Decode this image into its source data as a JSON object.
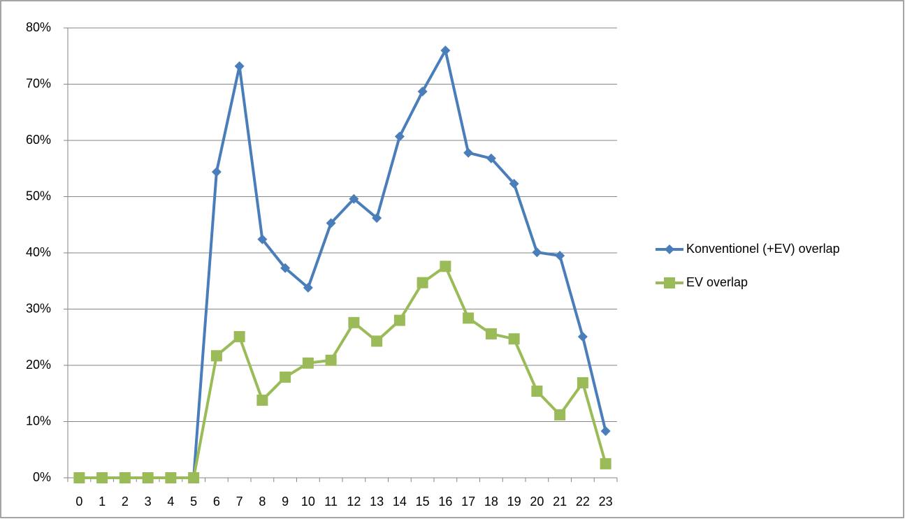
{
  "chart_data": {
    "type": "line",
    "categories": [
      "0",
      "1",
      "2",
      "3",
      "4",
      "5",
      "6",
      "7",
      "8",
      "9",
      "10",
      "11",
      "12",
      "13",
      "14",
      "15",
      "16",
      "17",
      "18",
      "19",
      "20",
      "21",
      "22",
      "23"
    ],
    "series": [
      {
        "name": "Konventionel (+EV) overlap",
        "color": "#4a7ebb",
        "marker": "diamond",
        "values": [
          0,
          0,
          0,
          0,
          0,
          0,
          54.4,
          73.2,
          42.4,
          37.3,
          33.8,
          45.3,
          49.6,
          46.2,
          60.7,
          68.7,
          76.0,
          57.8,
          56.8,
          52.3,
          40.1,
          39.5,
          25.1,
          8.3
        ]
      },
      {
        "name": "EV overlap",
        "color": "#9bbb59",
        "marker": "square",
        "values": [
          0,
          0,
          0,
          0,
          0,
          0,
          21.7,
          25.1,
          13.8,
          17.9,
          20.4,
          20.9,
          27.6,
          24.3,
          28.0,
          34.7,
          37.6,
          28.4,
          25.6,
          24.7,
          15.4,
          11.2,
          16.9,
          2.5
        ]
      }
    ],
    "ylim": [
      0,
      80
    ],
    "yticks": [
      {
        "value": 0,
        "label": "0%"
      },
      {
        "value": 10,
        "label": "10%"
      },
      {
        "value": 20,
        "label": "20%"
      },
      {
        "value": 30,
        "label": "30%"
      },
      {
        "value": 40,
        "label": "40%"
      },
      {
        "value": 50,
        "label": "50%"
      },
      {
        "value": 60,
        "label": "60%"
      },
      {
        "value": 70,
        "label": "70%"
      },
      {
        "value": 80,
        "label": "80%"
      }
    ],
    "grid": true,
    "legend": "right"
  }
}
